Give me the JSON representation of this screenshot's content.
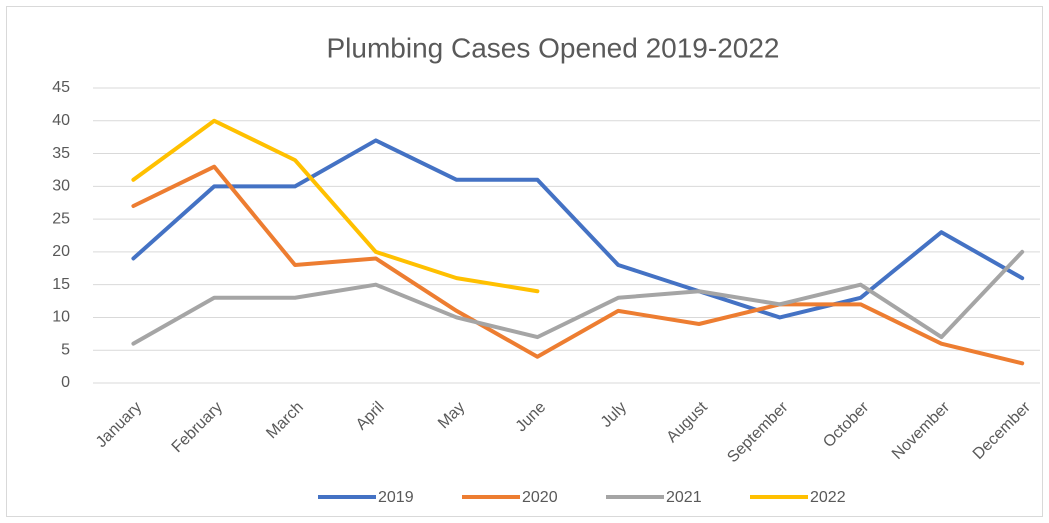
{
  "chart_data": {
    "type": "line",
    "title": "Plumbing Cases Opened 2019-2022",
    "categories": [
      "January",
      "February",
      "March",
      "April",
      "May",
      "June",
      "July",
      "August",
      "September",
      "October",
      "November",
      "December"
    ],
    "series": [
      {
        "name": "2019",
        "color": "#4472c4",
        "values": [
          19,
          30,
          30,
          37,
          31,
          31,
          18,
          14,
          10,
          13,
          23,
          16
        ]
      },
      {
        "name": "2020",
        "color": "#ed7d31",
        "values": [
          27,
          33,
          18,
          19,
          11,
          4,
          11,
          9,
          12,
          12,
          6,
          3
        ]
      },
      {
        "name": "2021",
        "color": "#a5a5a5",
        "values": [
          6,
          13,
          13,
          15,
          10,
          7,
          13,
          14,
          12,
          15,
          7,
          20
        ]
      },
      {
        "name": "2022",
        "color": "#ffc000",
        "values": [
          31,
          40,
          34,
          20,
          16,
          14,
          null,
          null,
          null,
          null,
          null,
          null
        ]
      }
    ],
    "ylim": [
      0,
      45
    ],
    "yticks": [
      0,
      5,
      10,
      15,
      20,
      25,
      30,
      35,
      40,
      45
    ],
    "grid": true,
    "legend": "bottom"
  }
}
